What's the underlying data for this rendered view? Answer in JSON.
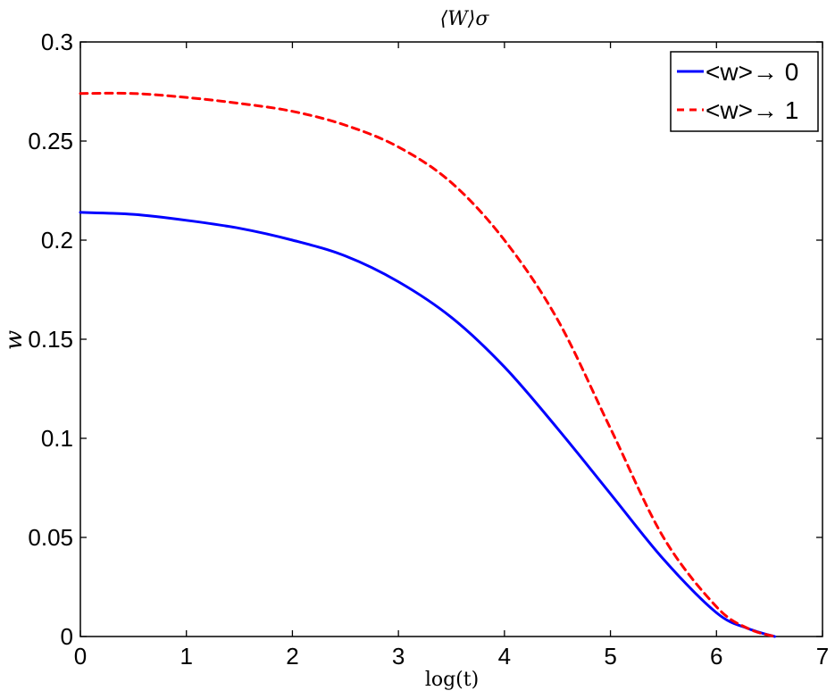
{
  "chart_data": {
    "type": "line",
    "title": "⟨W⟩σ",
    "xlabel": "log(t)",
    "ylabel": "w",
    "xlim": [
      0,
      7
    ],
    "ylim": [
      0,
      0.3
    ],
    "xticks": [
      "0",
      "1",
      "2",
      "3",
      "4",
      "5",
      "6",
      "7"
    ],
    "yticks": [
      "0",
      "0.05",
      "0.1",
      "0.15",
      "0.2",
      "0.25",
      "0.3"
    ],
    "grid": false,
    "legend_position": "top-right",
    "series": [
      {
        "name": "<w>→ 0",
        "color": "#0000ff",
        "style": "solid",
        "x": [
          0,
          0.5,
          1,
          1.5,
          2,
          2.5,
          3,
          3.5,
          4,
          4.5,
          5,
          5.5,
          6,
          6.3,
          6.55
        ],
        "y": [
          0.214,
          0.213,
          0.21,
          0.206,
          0.2,
          0.192,
          0.179,
          0.161,
          0.136,
          0.105,
          0.072,
          0.039,
          0.012,
          0.004,
          0.0
        ]
      },
      {
        "name": "<w>→ 1",
        "color": "#ff0000",
        "style": "dashed",
        "x": [
          0,
          0.5,
          1,
          1.5,
          2,
          2.5,
          3,
          3.5,
          4,
          4.5,
          5,
          5.5,
          6,
          6.3,
          6.55
        ],
        "y": [
          0.274,
          0.274,
          0.272,
          0.269,
          0.265,
          0.258,
          0.247,
          0.229,
          0.2,
          0.16,
          0.105,
          0.05,
          0.015,
          0.004,
          0.0
        ]
      }
    ]
  }
}
